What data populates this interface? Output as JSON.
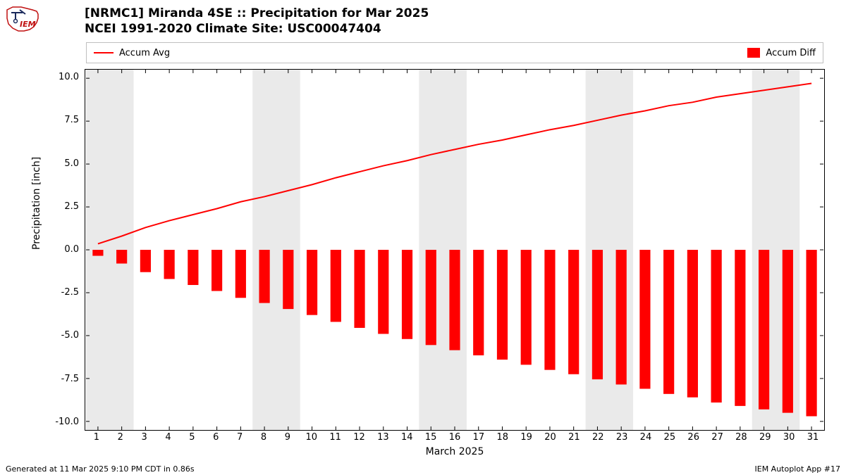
{
  "logo": {
    "outline_color": "#c01010",
    "text": "IEM",
    "text_color": "#c01010",
    "arrow_color": "#1a2a5c"
  },
  "title": {
    "line1": "[NRMC1] Miranda 4SE :: Precipitation for Mar 2025",
    "line2": "NCEI 1991-2020 Climate Site: USC00047404",
    "fontsize": 17
  },
  "legend": {
    "item1_label": "Accum Avg",
    "item1_type": "line",
    "item1_color": "#ff0000",
    "item2_label": "Accum Diff",
    "item2_type": "swatch",
    "item2_color": "#ff0000"
  },
  "chart": {
    "type": "bar+line",
    "background_color": "#ffffff",
    "weekend_band_color": "#eaeaea",
    "grid_color": "#000000",
    "xlim": [
      0.5,
      31.5
    ],
    "ylim": [
      -10.5,
      10.5
    ],
    "ylabel": "Precipitation [inch]",
    "xlabel": "March 2025",
    "yticks": [
      -10.0,
      -7.5,
      -5.0,
      -2.5,
      0.0,
      2.5,
      5.0,
      7.5,
      10.0
    ],
    "ytick_labels": [
      "-10.0",
      "-7.5",
      "-5.0",
      "-2.5",
      "0.0",
      "2.5",
      "5.0",
      "7.5",
      "10.0"
    ],
    "xticks": [
      1,
      2,
      3,
      4,
      5,
      6,
      7,
      8,
      9,
      10,
      11,
      12,
      13,
      14,
      15,
      16,
      17,
      18,
      19,
      20,
      21,
      22,
      23,
      24,
      25,
      26,
      27,
      28,
      29,
      30,
      31
    ],
    "xtick_labels": [
      "1",
      "2",
      "3",
      "4",
      "5",
      "6",
      "7",
      "8",
      "9",
      "10",
      "11",
      "12",
      "13",
      "14",
      "15",
      "16",
      "17",
      "18",
      "19",
      "20",
      "21",
      "22",
      "23",
      "24",
      "25",
      "26",
      "27",
      "28",
      "29",
      "30",
      "31"
    ],
    "weekend_bands": [
      [
        0.5,
        2.5
      ],
      [
        7.5,
        9.5
      ],
      [
        14.5,
        16.5
      ],
      [
        21.5,
        23.5
      ],
      [
        28.5,
        30.5
      ]
    ],
    "days": [
      1,
      2,
      3,
      4,
      5,
      6,
      7,
      8,
      9,
      10,
      11,
      12,
      13,
      14,
      15,
      16,
      17,
      18,
      19,
      20,
      21,
      22,
      23,
      24,
      25,
      26,
      27,
      28,
      29,
      30,
      31
    ],
    "accum_avg": [
      0.35,
      0.8,
      1.3,
      1.7,
      2.05,
      2.4,
      2.8,
      3.1,
      3.45,
      3.8,
      4.2,
      4.55,
      4.9,
      5.2,
      5.55,
      5.85,
      6.15,
      6.4,
      6.7,
      7.0,
      7.25,
      7.55,
      7.85,
      8.1,
      8.4,
      8.6,
      8.9,
      9.1,
      9.3,
      9.5,
      9.7
    ],
    "accum_diff": [
      -0.35,
      -0.8,
      -1.3,
      -1.7,
      -2.05,
      -2.4,
      -2.8,
      -3.1,
      -3.45,
      -3.8,
      -4.2,
      -4.55,
      -4.9,
      -5.2,
      -5.55,
      -5.85,
      -6.15,
      -6.4,
      -6.7,
      -7.0,
      -7.25,
      -7.55,
      -7.85,
      -8.1,
      -8.4,
      -8.6,
      -8.9,
      -9.1,
      -9.3,
      -9.5,
      -9.7
    ],
    "bar_color": "#ff0000",
    "bar_width": 0.45,
    "line_color": "#ff0000",
    "line_width": 2
  },
  "footer": {
    "left": "Generated at 11 Mar 2025 9:10 PM CDT in 0.86s",
    "right": "IEM Autoplot App #17"
  },
  "label_fontsize": 14,
  "tick_fontsize": 13
}
